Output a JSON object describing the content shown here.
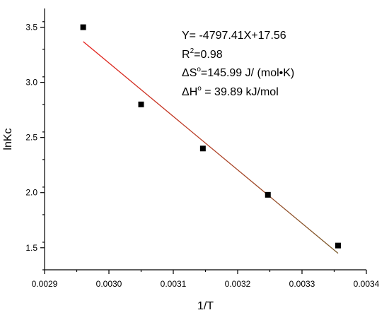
{
  "chart_data": {
    "type": "scatter",
    "xlabel": "1/T",
    "ylabel": "lnKc",
    "xlim": [
      0.0029,
      0.0034
    ],
    "ylim": [
      1.3,
      3.67
    ],
    "x_ticks": [
      0.0029,
      0.003,
      0.0031,
      0.0032,
      0.0033,
      0.0034
    ],
    "x_tick_labels": [
      "0.0029",
      "0.0030",
      "0.0031",
      "0.0032",
      "0.0033",
      "0.0034"
    ],
    "y_ticks": [
      1.5,
      2.0,
      2.5,
      3.0,
      3.5
    ],
    "y_tick_labels": [
      "1.5",
      "2.0",
      "2.5",
      "3.0",
      "3.5"
    ],
    "points": [
      {
        "x": 0.00296,
        "y": 3.5
      },
      {
        "x": 0.00305,
        "y": 2.8
      },
      {
        "x": 0.003146,
        "y": 2.4
      },
      {
        "x": 0.003247,
        "y": 1.98
      },
      {
        "x": 0.003356,
        "y": 1.52
      }
    ],
    "fit_line": {
      "x": [
        0.00296,
        0.003356
      ],
      "y": [
        3.37,
        1.45
      ],
      "color_start": "#e8231f",
      "color_end": "#7a5a2a"
    },
    "grid": false,
    "marker_color": "#000000",
    "annotations": [
      {
        "id": "equation",
        "parts": [
          {
            "t": "Y= -4797.41X+17.56"
          }
        ]
      },
      {
        "id": "r2",
        "parts": [
          {
            "t": "R"
          },
          {
            "t": "2",
            "sup": true
          },
          {
            "t": "=0.98"
          }
        ]
      },
      {
        "id": "ds",
        "parts": [
          {
            "t": "ΔS"
          },
          {
            "t": "o",
            "sup": true
          },
          {
            "t": "=145.99 J/ (mol•K)"
          }
        ]
      },
      {
        "id": "dh",
        "parts": [
          {
            "t": "ΔH"
          },
          {
            "t": "o",
            "sup": true
          },
          {
            "t": " = 39.89 kJ/mol"
          }
        ]
      }
    ]
  }
}
